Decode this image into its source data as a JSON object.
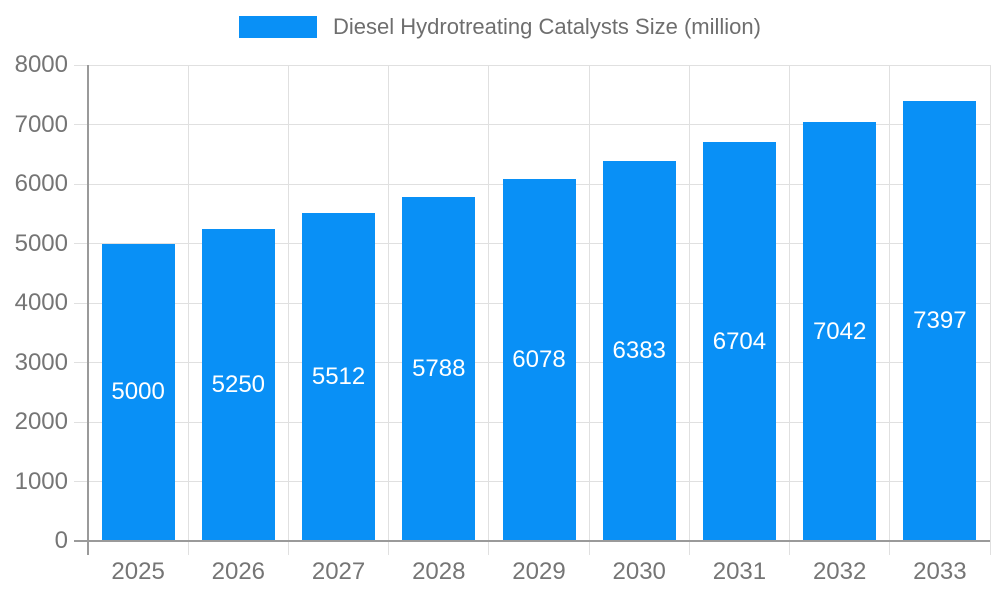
{
  "legend": {
    "label": "Diesel Hydrotreating Catalysts Size (million)",
    "swatch_color": "#0990f6",
    "text_color": "#6e6e6e"
  },
  "chart_data": {
    "type": "bar",
    "title": "Diesel Hydrotreating Catalysts Size (million)",
    "categories": [
      "2025",
      "2026",
      "2027",
      "2028",
      "2029",
      "2030",
      "2031",
      "2032",
      "2033"
    ],
    "values": [
      5000,
      5250,
      5512,
      5788,
      6078,
      6383,
      6704,
      7042,
      7397
    ],
    "xlabel": "",
    "ylabel": "",
    "ylim": [
      0,
      8000
    ],
    "yticks": [
      0,
      1000,
      2000,
      3000,
      4000,
      5000,
      6000,
      7000,
      8000
    ],
    "grid": true,
    "legend_position": "top",
    "bar_color": "#0990f6",
    "bar_label_color": "#ffffff",
    "axis_text_color": "#757575",
    "grid_color": "#e0e0e0",
    "axis_line_color": "#9a9a9a"
  }
}
